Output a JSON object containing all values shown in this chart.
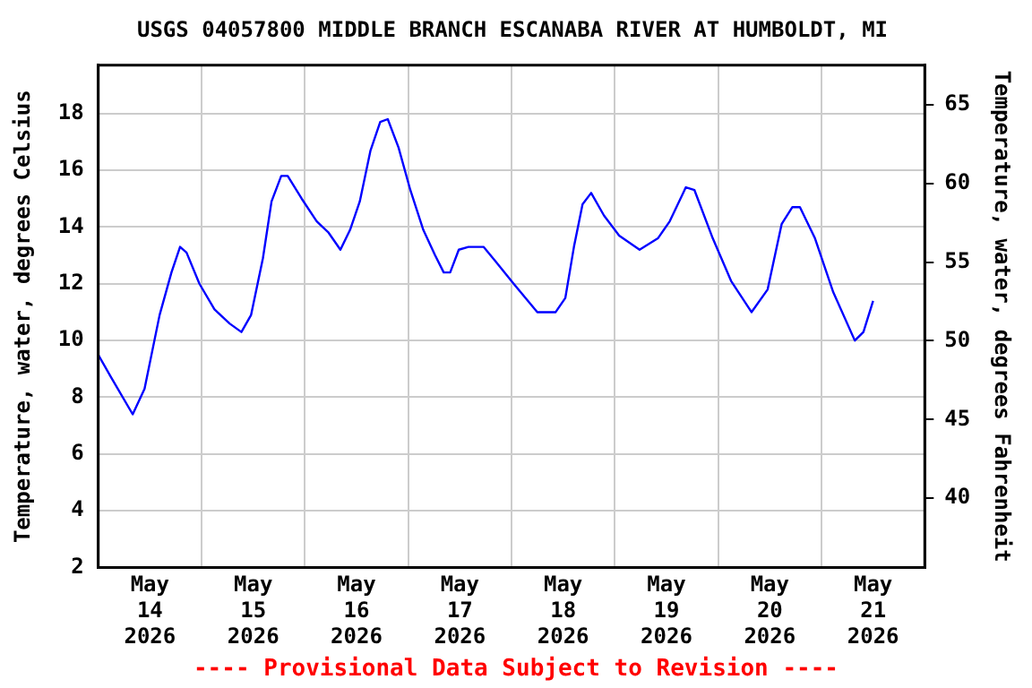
{
  "chart_data": {
    "type": "line",
    "title": "USGS 04057800 MIDDLE BRANCH ESCANABA RIVER AT HUMBOLDT, MI",
    "ylabel": "Temperature, water, degrees Celsius",
    "y2label": "Temperature, water, degrees Fahrenheit",
    "annotations": [
      "---- Provisional Data Subject to Revision ----"
    ],
    "x": [
      "2026-05-14T00:00",
      "2026-05-14T03:00",
      "2026-05-14T08:00",
      "2026-05-14T10:45",
      "2026-05-14T14:15",
      "2026-05-14T17:00",
      "2026-05-14T19:00",
      "2026-05-14T20:30",
      "2026-05-14T23:30",
      "2026-05-15T03:00",
      "2026-05-15T06:30",
      "2026-05-15T09:15",
      "2026-05-15T11:30",
      "2026-05-15T14:15",
      "2026-05-15T16:15",
      "2026-05-15T18:30",
      "2026-05-15T20:00",
      "2026-05-15T23:15",
      "2026-05-16T02:45",
      "2026-05-16T05:30",
      "2026-05-16T08:15",
      "2026-05-16T10:30",
      "2026-05-16T12:45",
      "2026-05-16T15:15",
      "2026-05-16T17:30",
      "2026-05-16T19:15",
      "2026-05-16T21:45",
      "2026-05-17T00:30",
      "2026-05-17T03:30",
      "2026-05-17T06:15",
      "2026-05-17T08:15",
      "2026-05-17T09:45",
      "2026-05-17T11:45",
      "2026-05-17T14:00",
      "2026-05-17T17:30",
      "2026-05-17T20:15",
      "2026-05-18T00:30",
      "2026-05-18T06:00",
      "2026-05-18T10:15",
      "2026-05-18T12:30",
      "2026-05-18T14:30",
      "2026-05-18T16:30",
      "2026-05-18T18:30",
      "2026-05-18T21:30",
      "2026-05-19T01:00",
      "2026-05-19T05:45",
      "2026-05-19T10:00",
      "2026-05-19T12:45",
      "2026-05-19T16:30",
      "2026-05-19T18:30",
      "2026-05-19T22:45",
      "2026-05-20T03:00",
      "2026-05-20T07:45",
      "2026-05-20T11:30",
      "2026-05-20T14:45",
      "2026-05-20T17:15",
      "2026-05-20T19:00",
      "2026-05-20T22:30",
      "2026-05-21T02:45",
      "2026-05-21T07:45",
      "2026-05-21T09:45",
      "2026-05-21T12:00"
    ],
    "series": [
      {
        "color": "#0000ff",
        "values": [
          9.5,
          8.7,
          7.4,
          8.3,
          10.9,
          12.4,
          13.3,
          13.1,
          12.0,
          11.1,
          10.6,
          10.3,
          10.9,
          12.9,
          14.9,
          15.8,
          15.8,
          15.0,
          14.2,
          13.8,
          13.2,
          13.9,
          14.9,
          16.7,
          17.7,
          17.8,
          16.8,
          15.3,
          13.9,
          13.0,
          12.4,
          12.4,
          13.2,
          13.3,
          13.3,
          12.8,
          12.0,
          11.0,
          11.0,
          11.5,
          13.3,
          14.8,
          15.2,
          14.4,
          13.7,
          13.2,
          13.6,
          14.2,
          15.4,
          15.3,
          13.6,
          12.1,
          11.0,
          11.8,
          14.1,
          14.7,
          14.7,
          13.6,
          11.7,
          10.0,
          10.3,
          11.4
        ]
      }
    ],
    "xlim": [
      "2026-05-14T00:00",
      "2026-05-22T00:00"
    ],
    "xticks": [
      {
        "value": "2026-05-14T12:00",
        "label": "May 14 2026"
      },
      {
        "value": "2026-05-15T00:00",
        "label": null
      },
      {
        "value": "2026-05-15T12:00",
        "label": "May 15 2026"
      },
      {
        "value": "2026-05-16T00:00",
        "label": null
      },
      {
        "value": "2026-05-16T12:00",
        "label": "May 16 2026"
      },
      {
        "value": "2026-05-17T00:00",
        "label": null
      },
      {
        "value": "2026-05-17T12:00",
        "label": "May 17 2026"
      },
      {
        "value": "2026-05-18T00:00",
        "label": null
      },
      {
        "value": "2026-05-18T12:00",
        "label": "May 18 2026"
      },
      {
        "value": "2026-05-19T00:00",
        "label": null
      },
      {
        "value": "2026-05-19T12:00",
        "label": "May 19 2026"
      },
      {
        "value": "2026-05-20T00:00",
        "label": null
      },
      {
        "value": "2026-05-20T12:00",
        "label": "May 20 2026"
      },
      {
        "value": "2026-05-21T00:00",
        "label": null
      },
      {
        "value": "2026-05-21T12:00",
        "label": "May 21 2026"
      }
    ],
    "ylim": [
      2,
      19.7
    ],
    "yticks": [
      2,
      4,
      6,
      8,
      10,
      12,
      14,
      16,
      18
    ],
    "y2lim": [
      35.6,
      67.5
    ],
    "y2ticks": [
      40,
      45,
      50,
      55,
      60,
      65
    ],
    "grid": true,
    "marker": "none",
    "line_style": "solid"
  }
}
